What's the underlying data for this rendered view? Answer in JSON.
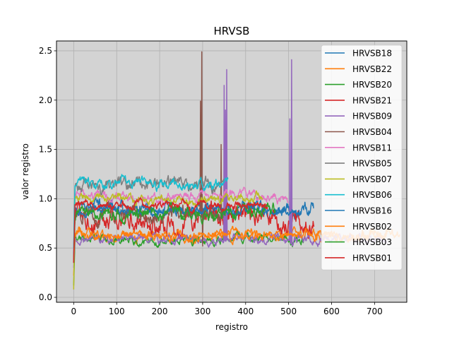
{
  "chart_data": {
    "type": "line",
    "title": "HRVSB",
    "xlabel": "registro",
    "ylabel": "valor registro",
    "xlim": [
      -40,
      775
    ],
    "ylim": [
      -0.05,
      2.6
    ],
    "xticks": [
      0,
      100,
      200,
      300,
      400,
      500,
      600,
      700
    ],
    "yticks": [
      0.0,
      0.5,
      1.0,
      1.5,
      2.0,
      2.5
    ],
    "xtick_labels": [
      "0",
      "100",
      "200",
      "300",
      "400",
      "500",
      "600",
      "700"
    ],
    "ytick_labels": [
      "0.0",
      "0.5",
      "1.0",
      "1.5",
      "2.0",
      "2.5"
    ],
    "grid": true,
    "background": "#d3d3d3",
    "legend_position": "upper-right",
    "series": [
      {
        "name": "HRVSB18",
        "color": "#1f77b4",
        "n": 560,
        "start": 0.38,
        "base": 0.9,
        "noise": 0.04,
        "trend": 0.0,
        "seed": 18,
        "spikes": []
      },
      {
        "name": "HRVSB22",
        "color": "#ff7f0e",
        "n": 760,
        "start": 0.22,
        "base": 0.63,
        "noise": 0.03,
        "trend": 0.0,
        "seed": 22,
        "spikes": []
      },
      {
        "name": "HRVSB20",
        "color": "#2ca02c",
        "n": 540,
        "start": 0.12,
        "base": 0.59,
        "noise": 0.025,
        "trend": 0.01,
        "seed": 20,
        "spikes": []
      },
      {
        "name": "HRVSB21",
        "color": "#d62728",
        "n": 560,
        "start": 0.35,
        "base": 0.8,
        "noise": 0.06,
        "trend": 0.05,
        "seed": 21,
        "spikes": []
      },
      {
        "name": "HRVSB09",
        "color": "#9467bd",
        "n": 730,
        "start": 0.3,
        "base": 0.59,
        "noise": 0.025,
        "trend": 0.0,
        "seed": 9,
        "spikes": [
          [
            350,
            2.15
          ],
          [
            353,
            1.9
          ],
          [
            356,
            2.31
          ],
          [
            503,
            1.81
          ],
          [
            507,
            2.41
          ]
        ]
      },
      {
        "name": "HRVSB04",
        "color": "#8c564b",
        "n": 350,
        "start": 0.4,
        "base": 0.85,
        "noise": 0.05,
        "trend": 0.0,
        "seed": 4,
        "spikes": [
          [
            295,
            1.99
          ],
          [
            298,
            2.49
          ],
          [
            300,
            0.52
          ],
          [
            343,
            1.55
          ]
        ]
      },
      {
        "name": "HRVSB11",
        "color": "#e377c2",
        "n": 500,
        "start": 0.5,
        "base": 1.02,
        "noise": 0.03,
        "trend": -0.02,
        "seed": 11,
        "spikes": []
      },
      {
        "name": "HRVSB05",
        "color": "#7f7f7f",
        "n": 350,
        "start": 0.45,
        "base": 1.13,
        "noise": 0.04,
        "trend": 0.0,
        "seed": 5,
        "spikes": []
      },
      {
        "name": "HRVSB07",
        "color": "#bcbd22",
        "n": 440,
        "start": 0.08,
        "base": 0.99,
        "noise": 0.025,
        "trend": 0.03,
        "seed": 7,
        "spikes": []
      },
      {
        "name": "HRVSB06",
        "color": "#17becf",
        "n": 360,
        "start": 0.5,
        "base": 1.15,
        "noise": 0.03,
        "trend": 0.01,
        "seed": 6,
        "spikes": []
      },
      {
        "name": "HRVSB16",
        "color": "#1f77b4",
        "n": 530,
        "start": 0.4,
        "base": 0.88,
        "noise": 0.025,
        "trend": 0.0,
        "seed": 16,
        "spikes": []
      },
      {
        "name": "HRVSB02",
        "color": "#ff7f0e",
        "n": 730,
        "start": 0.4,
        "base": 0.62,
        "noise": 0.025,
        "trend": 0.0,
        "seed": 2,
        "spikes": []
      },
      {
        "name": "HRVSB03",
        "color": "#2ca02c",
        "n": 470,
        "start": 0.35,
        "base": 0.85,
        "noise": 0.04,
        "trend": 0.0,
        "seed": 3,
        "spikes": []
      },
      {
        "name": "HRVSB01",
        "color": "#d62728",
        "n": 450,
        "start": 0.35,
        "base": 0.93,
        "noise": 0.025,
        "trend": 0.0,
        "seed": 1,
        "spikes": []
      }
    ]
  }
}
